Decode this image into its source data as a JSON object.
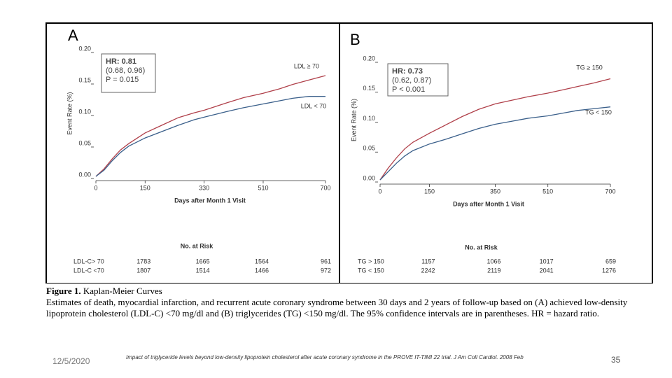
{
  "chart_data": [
    {
      "type": "line",
      "panel": "A",
      "ylabel": "Event Rate (%)",
      "xlabel": "Days after Month 1 Visit",
      "xlim": [
        0,
        700
      ],
      "xticks": [
        0,
        150,
        330,
        510,
        700
      ],
      "ylim": [
        0,
        0.2
      ],
      "yticks": [
        {
          "value": 0,
          "label": "0.00"
        },
        {
          "value": 0.05,
          "label": "0.05"
        },
        {
          "value": 0.1,
          "label": "0.10"
        },
        {
          "value": 0.15,
          "label": "0.15"
        },
        {
          "value": 0.2,
          "label": "0.20"
        }
      ],
      "annotation": [
        "HR: 0.81",
        "(0.68, 0.96)",
        "P = 0.015"
      ],
      "x": [
        0,
        25,
        50,
        75,
        100,
        150,
        200,
        250,
        300,
        330,
        400,
        450,
        510,
        560,
        600,
        650,
        700
      ],
      "series": [
        {
          "name": "LDL ≥ 70",
          "color": "#b0404a",
          "values": [
            0,
            0.012,
            0.028,
            0.042,
            0.052,
            0.069,
            0.081,
            0.093,
            0.101,
            0.105,
            0.117,
            0.125,
            0.132,
            0.139,
            0.146,
            0.153,
            0.16
          ]
        },
        {
          "name": "LDL < 70",
          "color": "#3a5f8a",
          "values": [
            0,
            0.01,
            0.025,
            0.038,
            0.048,
            0.061,
            0.071,
            0.081,
            0.09,
            0.094,
            0.103,
            0.109,
            0.115,
            0.12,
            0.124,
            0.127,
            0.127
          ]
        }
      ],
      "at_risk": {
        "title": "No. at Risk",
        "rows": [
          {
            "label": "LDL-C> 70",
            "values": [
              1783,
              1665,
              1564,
              961
            ]
          },
          {
            "label": "LDL-C <70",
            "values": [
              1807,
              1514,
              1466,
              972
            ]
          }
        ]
      }
    },
    {
      "type": "line",
      "panel": "B",
      "ylabel": "Event Rate (%)",
      "xlabel": "Days after Month 1 Visit",
      "xlim": [
        0,
        700
      ],
      "xticks": [
        0,
        150,
        350,
        510,
        700
      ],
      "ylim": [
        0,
        0.2
      ],
      "yticks": [
        {
          "value": 0,
          "label": "0.00"
        },
        {
          "value": 0.05,
          "label": "0.05"
        },
        {
          "value": 0.1,
          "label": "0.10"
        },
        {
          "value": 0.15,
          "label": "0.15"
        },
        {
          "value": 0.2,
          "label": "0.20"
        }
      ],
      "annotation": [
        "HR: 0.73",
        "(0.62, 0.87)",
        "P < 0.001"
      ],
      "x": [
        0,
        25,
        50,
        75,
        100,
        150,
        200,
        250,
        300,
        350,
        400,
        450,
        510,
        560,
        600,
        650,
        700
      ],
      "series": [
        {
          "name": "TG ≥ 150",
          "color": "#b0404a",
          "values": [
            0,
            0.02,
            0.037,
            0.052,
            0.063,
            0.078,
            0.092,
            0.106,
            0.118,
            0.127,
            0.133,
            0.139,
            0.145,
            0.151,
            0.156,
            0.162,
            0.169
          ]
        },
        {
          "name": "TG < 150",
          "color": "#3a5f8a",
          "values": [
            0,
            0.014,
            0.028,
            0.04,
            0.049,
            0.06,
            0.068,
            0.077,
            0.086,
            0.093,
            0.098,
            0.103,
            0.107,
            0.112,
            0.116,
            0.119,
            0.122
          ]
        }
      ],
      "at_risk": {
        "title": "No. at Risk",
        "rows": [
          {
            "label": "TG > 150",
            "values": [
              1157,
              1066,
              1017,
              659
            ]
          },
          {
            "label": "TG < 150",
            "values": [
              2242,
              2119,
              2041,
              1276
            ]
          }
        ]
      }
    }
  ],
  "caption": {
    "label": "Figure 1.",
    "title": "Kaplan-Meier Curves",
    "text": "Estimates of death, myocardial infarction, and recurrent acute coronary syndrome between 30 days and 2 years of follow-up based on (A) achieved low-density lipoprotein cholesterol (LDL-C) <70 mg/dl and (B) triglycerides (TG) <150 mg/dl. The 95% confidence intervals are in parentheses. HR = hazard ratio."
  },
  "footer": {
    "date": "12/5/2020",
    "citation": "Impact of triglyceride levels beyond low-density lipoprotein cholesterol after acute coronary syndrome in the PROVE IT-TIMI 22 trial. J Am Coll Cardiol. 2008 Feb",
    "page": "35"
  }
}
